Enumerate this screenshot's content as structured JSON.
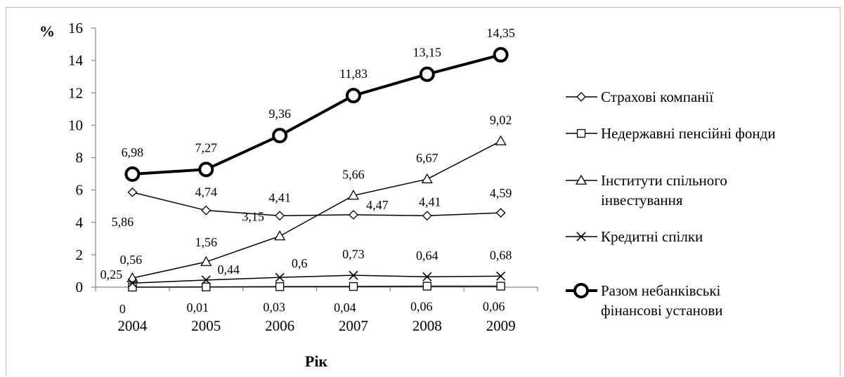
{
  "chart_data": {
    "type": "line",
    "ylabel": "%",
    "xlabel": "Рік",
    "ylim": [
      0,
      16
    ],
    "yticks": [
      "0",
      "2",
      "4",
      "6",
      "8",
      "10",
      "12",
      "14",
      "16"
    ],
    "categories": [
      "2004",
      "2005",
      "2006",
      "2007",
      "2008",
      "2009"
    ],
    "grid": false,
    "legend_position": "right",
    "series": [
      {
        "name": "Страхові компанії",
        "marker": "diamond",
        "color": "#000000",
        "values": [
          5.86,
          4.74,
          4.41,
          4.47,
          4.41,
          4.59
        ],
        "labels": [
          "5,86",
          "4,74",
          "4,41",
          "4,47",
          "4,41",
          "4,59"
        ]
      },
      {
        "name": "Недержавні пенсійні фонди",
        "marker": "square",
        "color": "#000000",
        "values": [
          0,
          0.01,
          0.03,
          0.04,
          0.06,
          0.06
        ],
        "labels": [
          "0",
          "0,01",
          "0,03",
          "0,04",
          "0,06",
          "0,06"
        ]
      },
      {
        "name": "Інститути спільного інвестування",
        "legend_lines": [
          "Інститути спільного",
          "інвестування"
        ],
        "marker": "triangle",
        "color": "#000000",
        "values": [
          0.56,
          1.56,
          3.15,
          5.66,
          6.67,
          9.02
        ],
        "labels": [
          "0,56",
          "1,56",
          "3,15",
          "5,66",
          "6,67",
          "9,02"
        ]
      },
      {
        "name": "Кредитні спілки",
        "marker": "x",
        "color": "#000000",
        "values": [
          0.25,
          0.44,
          0.6,
          0.73,
          0.64,
          0.68
        ],
        "labels": [
          "0,25",
          "0,44",
          "0,6",
          "0,73",
          "0,64",
          "0,68"
        ]
      },
      {
        "name": "Разом небанківські фінансові установи",
        "legend_lines": [
          "Разом небанківські",
          "фінансові установи"
        ],
        "marker": "circle",
        "color": "#000000",
        "bold": true,
        "values": [
          6.98,
          7.27,
          9.36,
          11.83,
          13.15,
          14.35
        ],
        "labels": [
          "6,98",
          "7,27",
          "9,36",
          "11,83",
          "13,15",
          "14,35"
        ]
      }
    ]
  }
}
